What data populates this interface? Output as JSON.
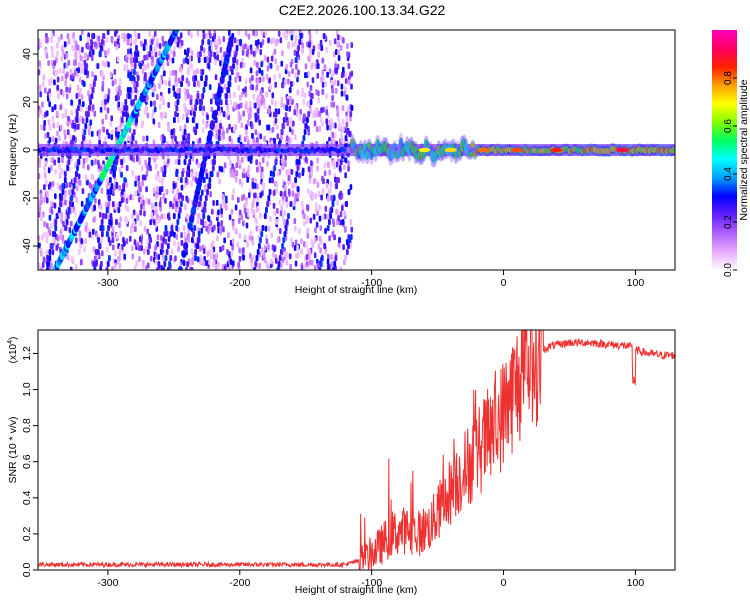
{
  "figure_title": "C2E2.2026.100.13.34.G22",
  "chart_data": [
    {
      "type": "heatmap",
      "title": "",
      "xlabel": "Height of straight line (km)",
      "ylabel": "Frequency (Hz)",
      "xlim": [
        -353,
        130
      ],
      "ylim": [
        -50,
        50
      ],
      "xticks": [
        -300,
        -200,
        -100,
        0,
        100
      ],
      "yticks": [
        -40,
        -20,
        0,
        20,
        40
      ],
      "colorbar": {
        "label": "Normalized spectral amplitude",
        "range": [
          0,
          1
        ],
        "ticks": [
          "0.0",
          "0.2",
          "0.4",
          "0.6",
          "0.8"
        ],
        "tick_values": [
          0,
          0.2,
          0.4,
          0.6,
          0.8
        ],
        "colormap": [
          "#ffffff",
          "#e8a8ff",
          "#b060ff",
          "#6020ff",
          "#0000ff",
          "#00a0ff",
          "#00ffff",
          "#00ff60",
          "#80ff00",
          "#ffff00",
          "#ffa000",
          "#ff2000",
          "#ff0060",
          "#ff00c0"
        ]
      },
      "features": {
        "noise_region_x": [
          -353,
          -115
        ],
        "carrier_signal_freq_hz": 0,
        "carrier_signal_x": [
          -353,
          130
        ],
        "diagonal_trace_1": {
          "x": [
            -340,
            -248
          ],
          "y": [
            -50,
            50
          ]
        },
        "diagonal_trace_2": {
          "x": [
            -245,
            -205
          ],
          "y": [
            -50,
            50
          ]
        }
      }
    },
    {
      "type": "line",
      "title": "",
      "xlabel": "Height of straight line (km)",
      "ylabel": "SNR (10 * v/v)",
      "scale_label_base": "(x10",
      "scale_label_exp": "4",
      "scale_label_end": ")",
      "xlim": [
        -353,
        130
      ],
      "ylim": [
        0,
        1.33
      ],
      "xticks": [
        -300,
        -200,
        -100,
        0,
        100
      ],
      "yticks": [
        "0.0",
        "0.2",
        "0.4",
        "0.6",
        "0.8",
        "1.0",
        "1.2"
      ],
      "ytick_values": [
        0,
        0.2,
        0.4,
        0.6,
        0.8,
        1.0,
        1.2
      ],
      "line_color": "#ee3030",
      "series": [
        {
          "name": "SNR",
          "x": [
            -353,
            -300,
            -250,
            -200,
            -150,
            -120,
            -105,
            -95,
            -85,
            -75,
            -65,
            -55,
            -45,
            -35,
            -25,
            -15,
            -5,
            5,
            15,
            25,
            35,
            50,
            65,
            80,
            95,
            100,
            110,
            120,
            130
          ],
          "values": [
            0.03,
            0.03,
            0.03,
            0.03,
            0.03,
            0.03,
            0.06,
            0.12,
            0.2,
            0.22,
            0.2,
            0.25,
            0.38,
            0.5,
            0.6,
            0.7,
            0.8,
            0.95,
            1.1,
            1.2,
            1.24,
            1.26,
            1.26,
            1.25,
            1.24,
            1.22,
            1.2,
            1.19,
            1.19
          ]
        }
      ]
    }
  ]
}
